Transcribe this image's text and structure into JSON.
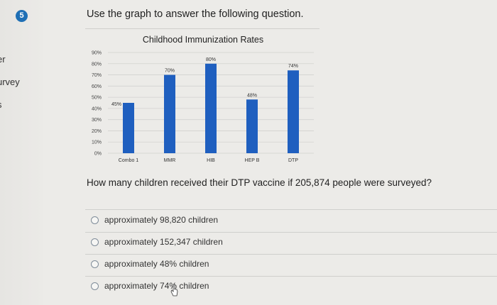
{
  "sidebar": {
    "items": [
      "er",
      "urvey",
      "s"
    ]
  },
  "question": {
    "number": "5",
    "prompt": "Use the graph to answer the following question.",
    "text": "How many children received their DTP vaccine if 205,874 people were surveyed?",
    "options": [
      "approximately 98,820 children",
      "approximately 152,347 children",
      "approximately 48% children",
      "approximately 74% children"
    ]
  },
  "chart_data": {
    "type": "bar",
    "title": "Childhood Immunization Rates",
    "categories": [
      "Combo 1",
      "MMR",
      "HIB",
      "HEP B",
      "DTP"
    ],
    "values": [
      45,
      70,
      80,
      48,
      74
    ],
    "data_labels": [
      "45%",
      "70%",
      "80%",
      "48%",
      "74%"
    ],
    "y_ticks": [
      "0%",
      "10%",
      "20%",
      "30%",
      "40%",
      "50%",
      "60%",
      "70%",
      "80%",
      "90%"
    ],
    "ylim": [
      0,
      90
    ],
    "grid": true,
    "bar_color": "#1f5fbf"
  }
}
